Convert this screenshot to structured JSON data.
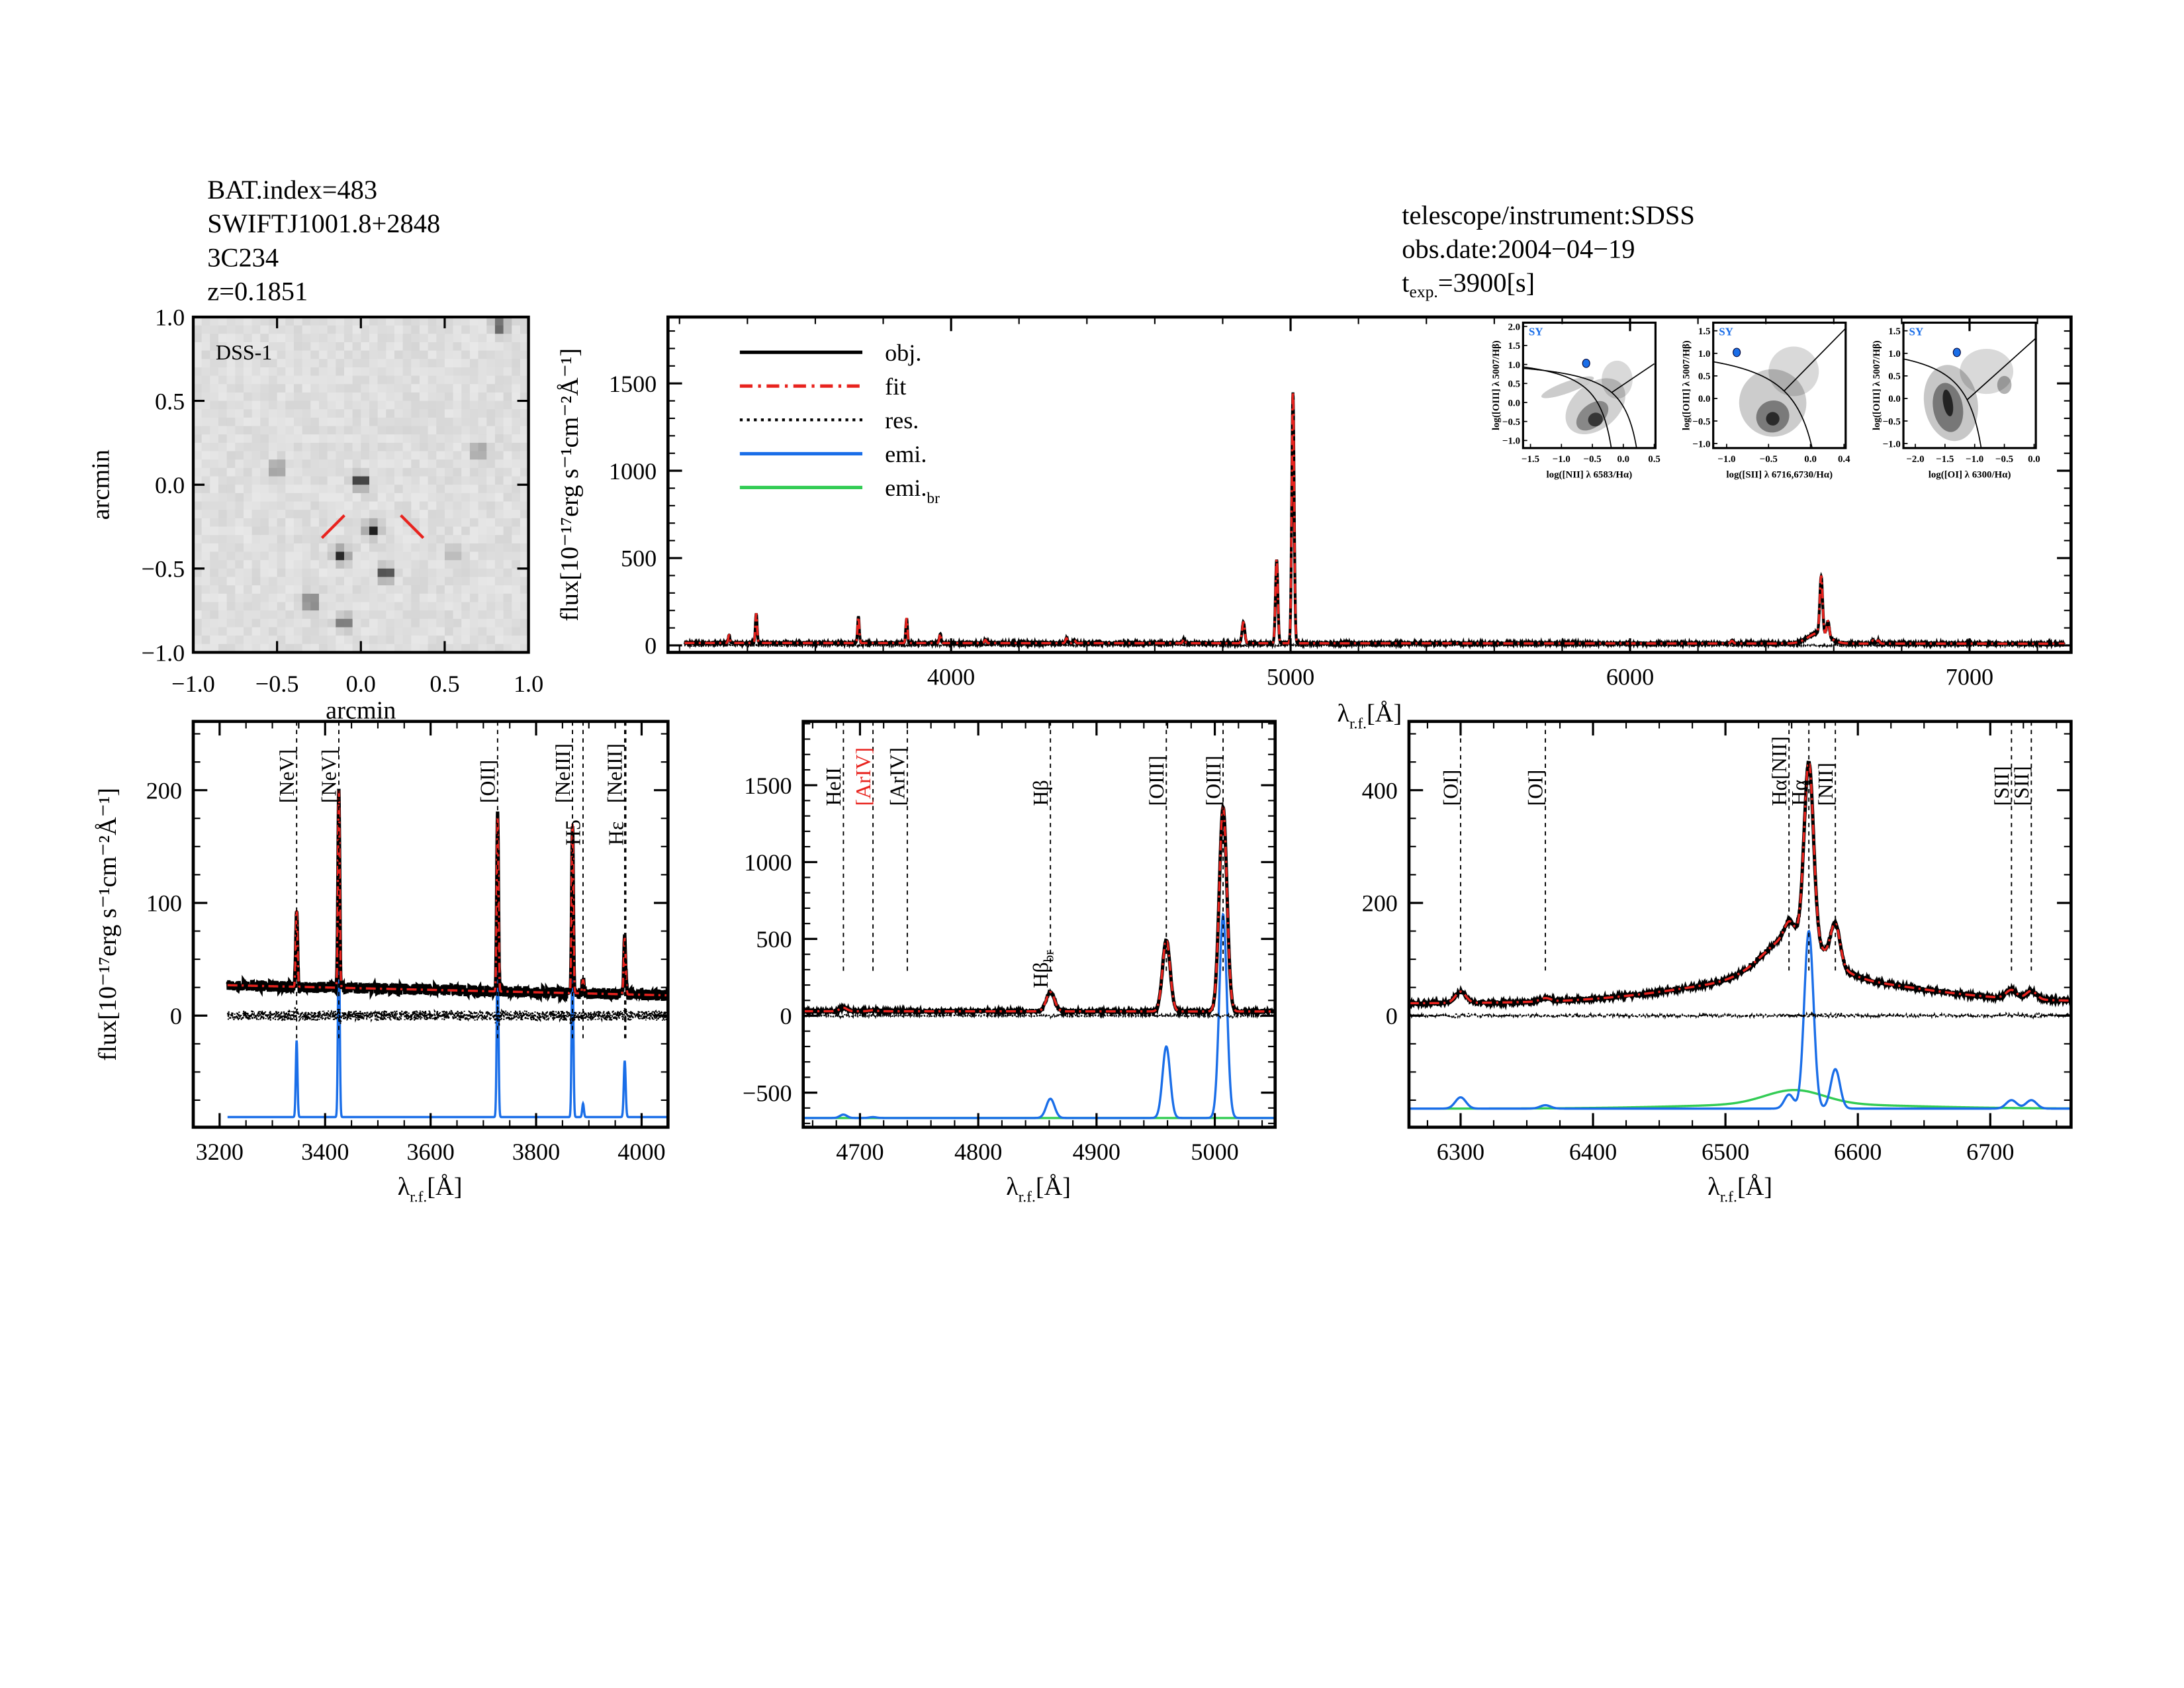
{
  "header": {
    "bat_index": "BAT.index=483",
    "swift_name": "SWIFTJ1001.8+2848",
    "source_name": "3C234",
    "redshift": "z=0.1851",
    "telescope": "telescope/instrument:SDSS",
    "obs_date": "obs.date:2004−04−19",
    "texp_prefix": "t",
    "texp_sub": "exp.",
    "texp_value": "=3900[s]"
  },
  "axis_text": {
    "flux_label": "flux[10⁻¹⁷erg s⁻¹cm⁻²Å⁻¹]",
    "lambda": "λ",
    "lambda_sub": "r.f.",
    "lambda_unit": "[Å]"
  },
  "legend": {
    "items": [
      {
        "label": "obj.",
        "sub": "",
        "color": "#000000",
        "style": "solid"
      },
      {
        "label": "fit",
        "sub": "",
        "color": "#e8231e",
        "style": "dashdot"
      },
      {
        "label": "res.",
        "sub": "",
        "color": "#000000",
        "style": "dotted"
      },
      {
        "label": "emi.",
        "sub": "",
        "color": "#1a6ee8",
        "style": "solid"
      },
      {
        "label": "emi.",
        "sub": "br",
        "color": "#33cc55",
        "style": "solid"
      }
    ]
  },
  "colors": {
    "obj": "#000000",
    "fit": "#e8231e",
    "emi": "#1a6ee8",
    "emi_br": "#33cc55",
    "sy": "#1a6ee8"
  },
  "chart_data": [
    {
      "type": "image",
      "label": "DSS-1",
      "xlabel": "arcmin",
      "ylabel": "arcmin",
      "xlim": [
        -1,
        1
      ],
      "ylim": [
        -1,
        1
      ],
      "ticks": [
        "−1.0",
        "−0.5",
        "0.0",
        "0.5",
        "1.0"
      ],
      "sources": [
        [
          0.0,
          0.02,
          1.0
        ],
        [
          0.07,
          -0.27,
          0.85
        ],
        [
          -0.12,
          -0.42,
          0.8
        ],
        [
          0.15,
          -0.53,
          0.85
        ],
        [
          -0.3,
          -0.7,
          0.7
        ],
        [
          -0.1,
          -0.82,
          0.6
        ],
        [
          -0.5,
          0.1,
          0.45
        ],
        [
          0.7,
          0.2,
          0.45
        ],
        [
          0.83,
          0.95,
          0.75
        ],
        [
          0.55,
          -0.4,
          0.25
        ]
      ],
      "target": [
        0.07,
        -0.25
      ]
    },
    {
      "type": "line",
      "xlim": [
        3166,
        7299
      ],
      "ylim": [
        -40,
        1880
      ],
      "xticks": [
        "4000",
        "5000",
        "6000",
        "7000"
      ],
      "yticks": [
        "0",
        "500",
        "1000",
        "1500"
      ],
      "wave_range": [
        3215,
        7280
      ],
      "continuum": [
        14,
        10
      ],
      "noise": 4,
      "lines": [
        {
          "center": 3346,
          "amp": 45,
          "sigma": 2.5
        },
        {
          "center": 3426,
          "amp": 170,
          "sigma": 2.5
        },
        {
          "center": 3727,
          "amp": 150,
          "sigma": 2.5
        },
        {
          "center": 3869,
          "amp": 140,
          "sigma": 2.5
        },
        {
          "center": 3968,
          "amp": 55,
          "sigma": 2.5
        },
        {
          "center": 4101,
          "amp": 18,
          "sigma": 3
        },
        {
          "center": 4340,
          "amp": 28,
          "sigma": 3
        },
        {
          "center": 4363,
          "amp": 18,
          "sigma": 3
        },
        {
          "center": 4686,
          "amp": 25,
          "sigma": 3
        },
        {
          "center": 4861,
          "amp": 120,
          "sigma": 4
        },
        {
          "center": 4959,
          "amp": 480,
          "sigma": 3.5
        },
        {
          "center": 5007,
          "amp": 1440,
          "sigma": 3.5
        },
        {
          "center": 6300,
          "amp": 15,
          "sigma": 4
        },
        {
          "center": 6563,
          "amp": 330,
          "sigma": 4
        },
        {
          "center": 6583,
          "amp": 90,
          "sigma": 4
        },
        {
          "center": 6716,
          "amp": 18,
          "sigma": 4
        },
        {
          "center": 6731,
          "amp": 18,
          "sigma": 4
        }
      ],
      "broad_lines": [
        {
          "center": 6555,
          "amp": 60,
          "sigma": 30
        }
      ]
    },
    {
      "type": "scatter",
      "class_label": "SY",
      "xlabel": "log([NII] λ 6583/Hα)",
      "ylabel": "log([OIII] λ 5007/Hβ)",
      "xlim": [
        -1.62,
        0.52
      ],
      "ylim": [
        -1.2,
        2.1
      ],
      "xticks": [
        "−1.5",
        "−1.0",
        "−0.5",
        "0.0",
        "0.5"
      ],
      "yticks": [
        "−1.0",
        "−0.5",
        "0.0",
        "0.5",
        "1.0",
        "1.5",
        "2.0"
      ],
      "point": [
        -0.6,
        1.03
      ],
      "diagram": "nii"
    },
    {
      "type": "scatter",
      "class_label": "SY",
      "xlabel": "log([SII] λ 6716,6730/Hα)",
      "ylabel": "log([OIII] λ 5007/Hβ)",
      "xlim": [
        -1.16,
        0.42
      ],
      "ylim": [
        -1.1,
        1.68
      ],
      "xticks": [
        "−1.0",
        "−0.5",
        "0.0",
        "0.4"
      ],
      "yticks": [
        "−1.0",
        "−0.5",
        "0.0",
        "0.5",
        "1.0",
        "1.5"
      ],
      "point": [
        -0.88,
        1.02
      ],
      "diagram": "sii"
    },
    {
      "type": "scatter",
      "class_label": "SY",
      "xlabel": "log([OI] λ 6300/Hα)",
      "ylabel": "log([OIII] λ 5007/Hβ)",
      "xlim": [
        -2.2,
        0.03
      ],
      "ylim": [
        -1.1,
        1.68
      ],
      "xticks": [
        "−2.0",
        "−1.5",
        "−1.0",
        "−0.5",
        "0.0"
      ],
      "yticks": [
        "−1.0",
        "−0.5",
        "0.0",
        "0.5",
        "1.0",
        "1.5"
      ],
      "point": [
        -1.3,
        1.02
      ],
      "diagram": "oi"
    },
    {
      "type": "line",
      "xlim": [
        3150,
        4050
      ],
      "ylim": [
        -99,
        261
      ],
      "xticks": [
        "3200",
        "3400",
        "3600",
        "3800",
        "4000"
      ],
      "yticks": [
        "0",
        "100",
        "200"
      ],
      "wave_range": [
        3215,
        4050
      ],
      "continuum": [
        27,
        18
      ],
      "noise": 5,
      "emi_baseline": -90,
      "lines": [
        {
          "center": 3346,
          "amp": 68,
          "sigma": 1.6
        },
        {
          "center": 3426,
          "amp": 175,
          "sigma": 1.6
        },
        {
          "center": 3727,
          "amp": 155,
          "sigma": 1.6
        },
        {
          "center": 3869,
          "amp": 150,
          "sigma": 1.6
        },
        {
          "center": 3889,
          "amp": 12,
          "sigma": 1.6
        },
        {
          "center": 3968,
          "amp": 50,
          "sigma": 1.8
        }
      ],
      "broad_lines": [],
      "markers": [
        {
          "wave": 3346,
          "label": "[NeV]"
        },
        {
          "wave": 3426,
          "label": "[NeV]"
        },
        {
          "wave": 3727,
          "label": "[OII]"
        },
        {
          "wave": 3869,
          "label": "[NeIII]"
        },
        {
          "wave": 3889,
          "label": "H5"
        },
        {
          "wave": 3968,
          "label": "[NeIII]"
        },
        {
          "wave": 3970,
          "label": "Hε"
        }
      ]
    },
    {
      "type": "line",
      "xlim": [
        4652,
        5051
      ],
      "ylim": [
        -725,
        1915
      ],
      "xticks": [
        "4700",
        "4800",
        "4900",
        "5000"
      ],
      "yticks": [
        "−500",
        "0",
        "500",
        "1000",
        "1500"
      ],
      "wave_range": [
        4652,
        5051
      ],
      "continuum": [
        30,
        28
      ],
      "noise": 6,
      "emi_baseline": -665,
      "lines": [
        {
          "center": 4686,
          "amp": 22,
          "sigma": 3
        },
        {
          "center": 4711,
          "amp": 6,
          "sigma": 3
        },
        {
          "center": 4861,
          "amp": 125,
          "sigma": 3.5
        },
        {
          "center": 4959,
          "amp": 465,
          "sigma": 3.2
        },
        {
          "center": 5007,
          "amp": 1325,
          "sigma": 3.2
        }
      ],
      "broad_lines": [
        {
          "center": 4861,
          "amp": 0,
          "sigma": 30
        }
      ],
      "markers": [
        {
          "wave": 4686,
          "label": "HeII",
          "color": "#000000"
        },
        {
          "wave": 4711,
          "label": "[ArIV]",
          "color": "#e8231e"
        },
        {
          "wave": 4740,
          "label": "[ArIV]",
          "color": "#000000"
        },
        {
          "wave": 4861,
          "label": "Hβ",
          "color": "#000000"
        },
        {
          "wave": 4959,
          "label": "[OIII]",
          "color": "#000000"
        },
        {
          "wave": 5007,
          "label": "[OIII]",
          "color": "#000000"
        }
      ],
      "annotation": {
        "label": "Hβ",
        "sub": "br",
        "wave": 4861,
        "flux": 180
      }
    },
    {
      "type": "line",
      "xlim": [
        6261,
        6761
      ],
      "ylim": [
        -198,
        522
      ],
      "xticks": [
        "6300",
        "6400",
        "6500",
        "6600",
        "6700"
      ],
      "yticks": [
        "0",
        "200",
        "400"
      ],
      "wave_range": [
        6261,
        6761
      ],
      "continuum": [
        22,
        25
      ],
      "noise": 2.5,
      "emi_baseline": -165,
      "lines": [
        {
          "center": 6300,
          "amp": 20,
          "sigma": 4
        },
        {
          "center": 6364,
          "amp": 6,
          "sigma": 4
        },
        {
          "center": 6548,
          "amp": 25,
          "sigma": 3.5
        },
        {
          "center": 6563,
          "amp": 315,
          "sigma": 3.5
        },
        {
          "center": 6583,
          "amp": 70,
          "sigma": 3.5
        },
        {
          "center": 6716,
          "amp": 15,
          "sigma": 4
        },
        {
          "center": 6731,
          "amp": 15,
          "sigma": 4
        }
      ],
      "broad_lines": [
        {
          "center": 6552,
          "amp": 75,
          "sigma": 22,
          "emi_amp": 25
        },
        {
          "center": 6555,
          "amp": 45,
          "sigma": 80,
          "emi_amp": 8
        }
      ],
      "markers": [
        {
          "wave": 6300,
          "label": "[OI]"
        },
        {
          "wave": 6364,
          "label": "[OI]"
        },
        {
          "wave": 6548,
          "label": "Hα[NII]"
        },
        {
          "wave": 6563,
          "label": "Hα"
        },
        {
          "wave": 6583,
          "label": "[NII]"
        },
        {
          "wave": 6716,
          "label": "[SII]"
        },
        {
          "wave": 6731,
          "label": "[SII]"
        }
      ]
    }
  ]
}
